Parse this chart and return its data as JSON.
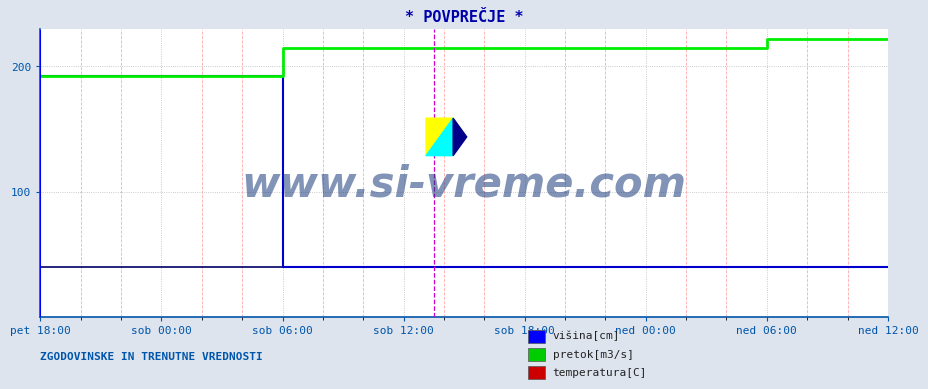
{
  "title": "* POVPREČJE *",
  "bg_color": "#dde4ee",
  "plot_bg_color": "#ffffff",
  "title_color": "#0000aa",
  "title_fontsize": 11,
  "ylim": [
    0,
    230
  ],
  "yticks": [
    100,
    200
  ],
  "tick_color": "#0055aa",
  "grid_minor_color": "#ffaaaa",
  "grid_major_color": "#bbbbbb",
  "watermark_text": "www.si-vreme.com",
  "watermark_color": "#1a3a7a",
  "bottom_left_text": "ZGODOVINSKE IN TRENUTNE VREDNOSTI",
  "bottom_left_color": "#0055aa",
  "legend_labels": [
    "višina[cm]",
    "pretok[m3/s]",
    "temperatura[C]"
  ],
  "legend_colors": [
    "#0000ff",
    "#00cc00",
    "#cc0000"
  ],
  "x_tick_labels": [
    "pet 18:00",
    "sob 00:00",
    "sob 06:00",
    "sob 12:00",
    "sob 18:00",
    "ned 00:00",
    "ned 06:00",
    "ned 12:00"
  ],
  "x_tick_positions": [
    0,
    72,
    144,
    216,
    288,
    360,
    432,
    504
  ],
  "x_minor_positions": [
    24,
    48,
    96,
    120,
    168,
    192,
    240,
    264,
    312,
    336,
    384,
    408,
    456,
    480
  ],
  "x_total": 504,
  "vertical_line_x": 234,
  "vertical_line_color": "#cc00cc",
  "series": {
    "visina": {
      "color": "#0000cc",
      "linewidth": 1.5,
      "points": [
        [
          0,
          192
        ],
        [
          144,
          192
        ],
        [
          144,
          40
        ],
        [
          504,
          40
        ]
      ]
    },
    "pretok": {
      "color": "#00ee00",
      "linewidth": 2.0,
      "points": [
        [
          0,
          192
        ],
        [
          144,
          192
        ],
        [
          144,
          215
        ],
        [
          432,
          215
        ],
        [
          432,
          222
        ],
        [
          504,
          222
        ]
      ]
    },
    "temperatura": {
      "color": "#000066",
      "linewidth": 1.2,
      "points": [
        [
          0,
          40
        ],
        [
          504,
          40
        ]
      ]
    }
  }
}
